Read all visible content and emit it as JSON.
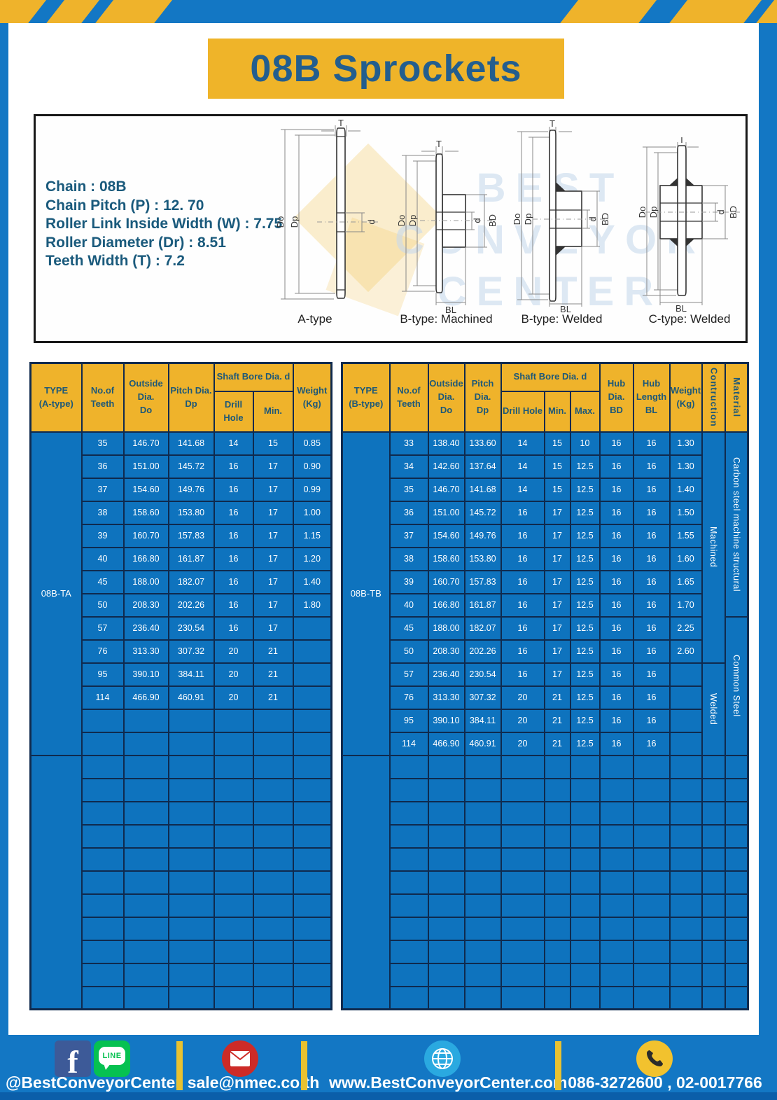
{
  "page": {
    "title": "08B Sprockets"
  },
  "specs": {
    "lines": [
      "Chain : 08B",
      "Chain Pitch (P) : 12. 70",
      "Roller Link Inside Width (W) : 7.75",
      "Roller Diameter (Dr) : 8.51",
      "Teeth Width (T) : 7.2"
    ]
  },
  "watermark": {
    "line1": "BEST",
    "line2": "CONVEYOR",
    "line3": "CENTER"
  },
  "dims": {
    "T": "T",
    "Do": "Do",
    "Dp": "Dp",
    "d": "d",
    "BD": "BD",
    "BL": "BL"
  },
  "diagrams": {
    "a_caption": "A-type",
    "b_machined_caption": "B-type: Machined",
    "b_welded_caption": "B-type: Welded",
    "c_welded_caption": "C-type: Welded"
  },
  "table_a": {
    "headers": {
      "type": "TYPE\n(A-type)",
      "teeth": "No.of\nTeeth",
      "outside": "Outside\nDia.\nDo",
      "pitch": "Pitch Dia.\nDp",
      "shaft": "Shaft Bore Dia. d",
      "drill": "Drill Hole",
      "min": "Min.",
      "weight": "Weight\n(Kg)"
    },
    "group1_type": "08B-TA",
    "rows": [
      [
        "35",
        "146.70",
        "141.68",
        "14",
        "15",
        "0.85"
      ],
      [
        "36",
        "151.00",
        "145.72",
        "16",
        "17",
        "0.90"
      ],
      [
        "37",
        "154.60",
        "149.76",
        "16",
        "17",
        "0.99"
      ],
      [
        "38",
        "158.60",
        "153.80",
        "16",
        "17",
        "1.00"
      ],
      [
        "39",
        "160.70",
        "157.83",
        "16",
        "17",
        "1.15"
      ],
      [
        "40",
        "166.80",
        "161.87",
        "16",
        "17",
        "1.20"
      ],
      [
        "45",
        "188.00",
        "182.07",
        "16",
        "17",
        "1.40"
      ],
      [
        "50",
        "208.30",
        "202.26",
        "16",
        "17",
        "1.80"
      ],
      [
        "57",
        "236.40",
        "230.54",
        "16",
        "17",
        ""
      ],
      [
        "76",
        "313.30",
        "307.32",
        "20",
        "21",
        ""
      ],
      [
        "95",
        "390.10",
        "384.11",
        "20",
        "21",
        ""
      ],
      [
        "114",
        "466.90",
        "460.91",
        "20",
        "21",
        ""
      ]
    ],
    "group1_empty_rows": 2,
    "group2_empty_rows": 11
  },
  "table_b": {
    "headers": {
      "type": "TYPE\n(B-type)",
      "teeth": "No.of\nTeeth",
      "outside": "Outside\nDia.\nDo",
      "pitch": "Pitch Dia.\nDp",
      "shaft": "Shaft Bore Dia. d",
      "drill": "Drill Hole",
      "min": "Min.",
      "max": "Max.",
      "hub_dia": "Hub Dia.\nBD",
      "hub_len": "Hub\nLength\nBL",
      "weight": "Weight\n(Kg)",
      "construction": "Contruction",
      "material": "Material"
    },
    "group1_type": "08B-TB",
    "rows": [
      [
        "33",
        "138.40",
        "133.60",
        "14",
        "15",
        "10",
        "16",
        "16",
        "1.30"
      ],
      [
        "34",
        "142.60",
        "137.64",
        "14",
        "15",
        "12.5",
        "16",
        "16",
        "1.30"
      ],
      [
        "35",
        "146.70",
        "141.68",
        "14",
        "15",
        "12.5",
        "16",
        "16",
        "1.40"
      ],
      [
        "36",
        "151.00",
        "145.72",
        "16",
        "17",
        "12.5",
        "16",
        "16",
        "1.50"
      ],
      [
        "37",
        "154.60",
        "149.76",
        "16",
        "17",
        "12.5",
        "16",
        "16",
        "1.55"
      ],
      [
        "38",
        "158.60",
        "153.80",
        "16",
        "17",
        "12.5",
        "16",
        "16",
        "1.60"
      ],
      [
        "39",
        "160.70",
        "157.83",
        "16",
        "17",
        "12.5",
        "16",
        "16",
        "1.65"
      ],
      [
        "40",
        "166.80",
        "161.87",
        "16",
        "17",
        "12.5",
        "16",
        "16",
        "1.70"
      ],
      [
        "45",
        "188.00",
        "182.07",
        "16",
        "17",
        "12.5",
        "16",
        "16",
        "2.25"
      ],
      [
        "50",
        "208.30",
        "202.26",
        "16",
        "17",
        "12.5",
        "16",
        "16",
        "2.60"
      ],
      [
        "57",
        "236.40",
        "230.54",
        "16",
        "17",
        "12.5",
        "16",
        "16",
        ""
      ],
      [
        "76",
        "313.30",
        "307.32",
        "20",
        "21",
        "12.5",
        "16",
        "16",
        ""
      ],
      [
        "95",
        "390.10",
        "384.11",
        "20",
        "21",
        "12.5",
        "16",
        "16",
        ""
      ],
      [
        "114",
        "466.90",
        "460.91",
        "20",
        "21",
        "12.5",
        "16",
        "16",
        ""
      ]
    ],
    "construction_spans": [
      {
        "label": "Machined",
        "rows": 10
      },
      {
        "label": "Welded",
        "rows": 4
      }
    ],
    "material_spans": [
      {
        "label": "Carbon steel  machine structural",
        "rows": 8
      },
      {
        "label": "Common Steel",
        "rows": 6
      }
    ],
    "group2_empty_rows": 11
  },
  "footer": {
    "social_handle": "@BestConveyorCenter",
    "email": "sale@nmec.co.th",
    "website": "www.BestConveyorCenter.com",
    "phone": "086-3272600 , 02-0017766",
    "line_badge": "LINE",
    "facebook_glyph": "f"
  },
  "colors": {
    "table_blue": "#0e73be",
    "grid_navy": "#0f2a4e",
    "gold": "#efb32b",
    "bar_blue": "#1377c4",
    "title_text": "#235e8e",
    "header_text": "#1d5878",
    "spec_text": "#1a5a7c"
  }
}
